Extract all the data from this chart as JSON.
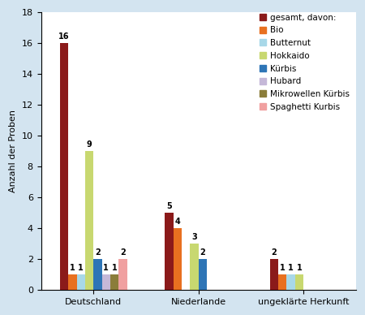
{
  "groups": [
    "Deutschland",
    "Niederlande",
    "ungeklärte Herkunft"
  ],
  "series": [
    {
      "label": "gesamt, davon:",
      "color": "#8B1A1A",
      "values": [
        16,
        5,
        2
      ]
    },
    {
      "label": "Bio",
      "color": "#E87020",
      "values": [
        1,
        4,
        1
      ]
    },
    {
      "label": "Butternut",
      "color": "#A8D8E8",
      "values": [
        1,
        0,
        1
      ]
    },
    {
      "label": "Hokkaido",
      "color": "#C8D870",
      "values": [
        9,
        3,
        1
      ]
    },
    {
      "label": "Kürbis",
      "color": "#2E75B6",
      "values": [
        2,
        2,
        0
      ]
    },
    {
      "label": "Hubard",
      "color": "#C5B8D8",
      "values": [
        1,
        0,
        0
      ]
    },
    {
      "label": "Mikrowellen Kürbis",
      "color": "#8B7D3A",
      "values": [
        1,
        0,
        0
      ]
    },
    {
      "label": "Spaghetti Kurbis",
      "color": "#F0A0A0",
      "values": [
        2,
        0,
        0
      ]
    }
  ],
  "ylabel": "Anzahl der Proben",
  "ylim": [
    0,
    18
  ],
  "yticks": [
    0,
    2,
    4,
    6,
    8,
    10,
    12,
    14,
    16,
    18
  ],
  "background_color": "#D3E4F0",
  "plot_background": "#FFFFFF",
  "bar_width": 0.08,
  "legend_fontsize": 7.5,
  "label_fontsize": 7,
  "axis_fontsize": 8
}
